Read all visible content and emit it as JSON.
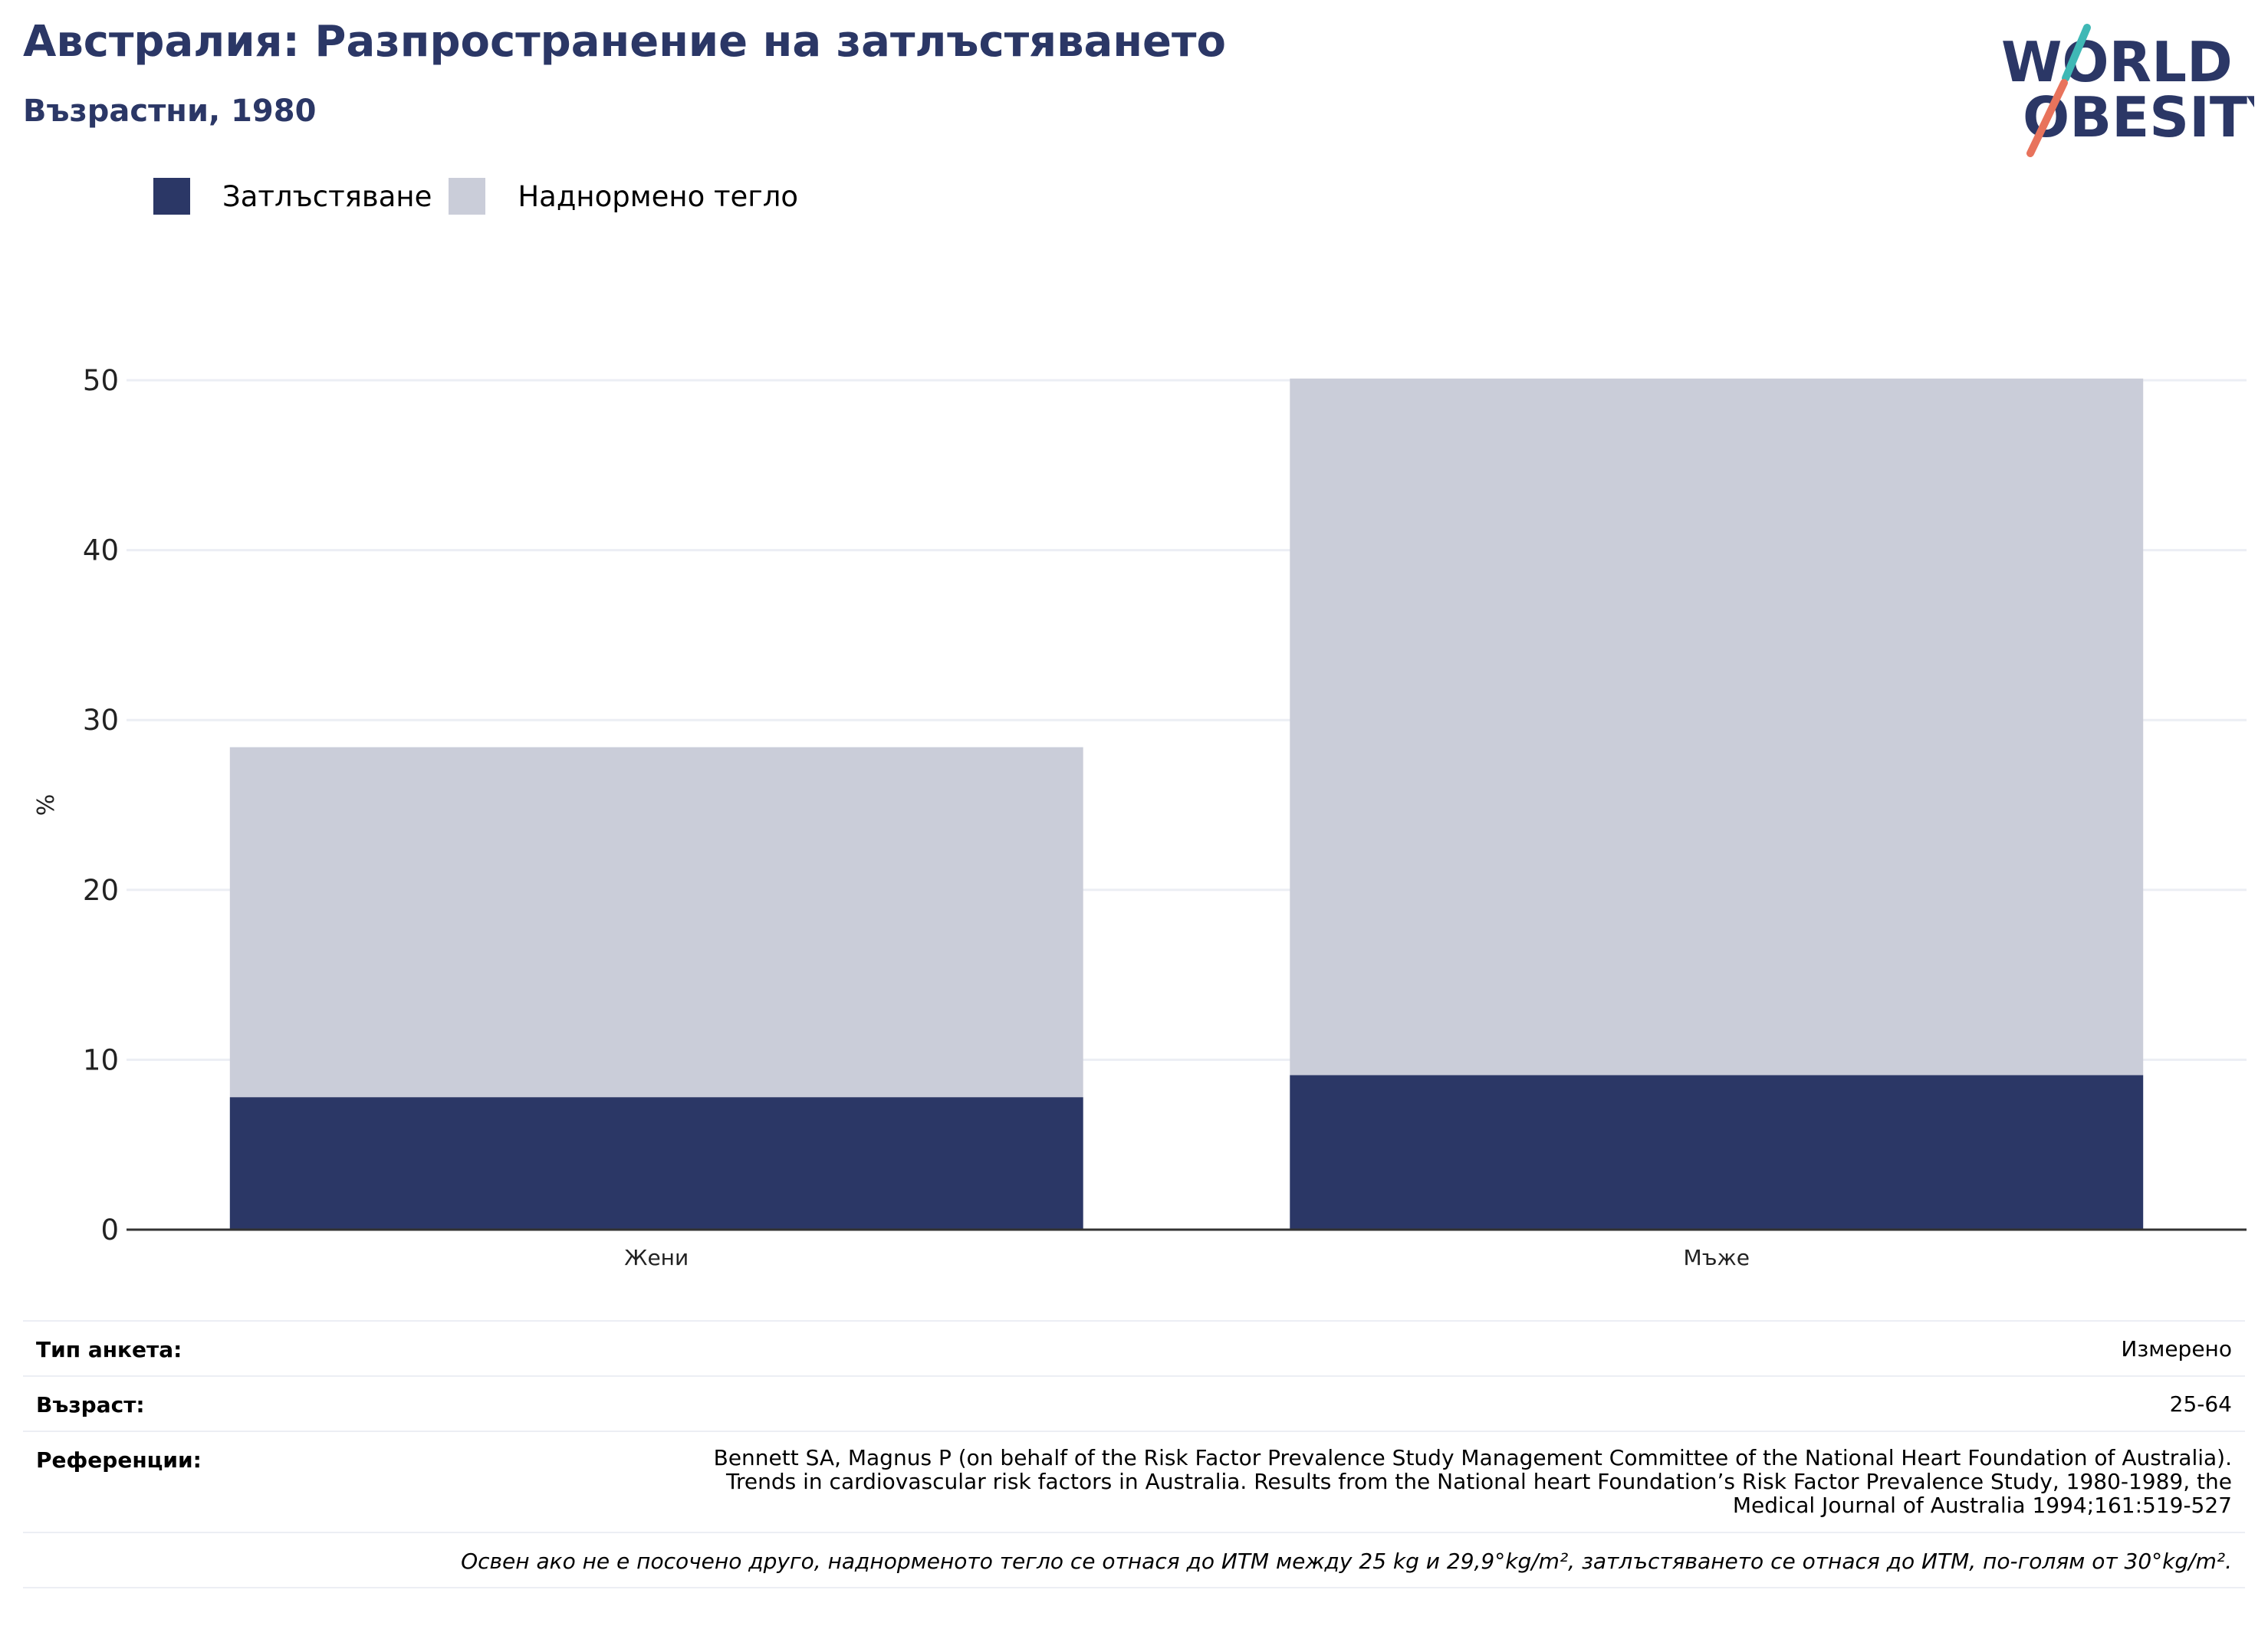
{
  "header": {
    "title": "Австралия: Разпространение на затлъстяването",
    "subtitle": "Възрастни, 1980"
  },
  "logo": {
    "line1": "WORLD",
    "line2": "OBESITY"
  },
  "colors": {
    "obesity": "#2b3766",
    "overweight": "#cacdd9",
    "brand": "#2b3766",
    "accent_teal": "#3fb8b5",
    "accent_coral": "#e8735c"
  },
  "chart_data": {
    "type": "bar",
    "stacked": true,
    "categories": [
      "Жени",
      "Мъже"
    ],
    "series": [
      {
        "name": "Затлъстяване",
        "values": [
          7.8,
          9.1
        ]
      },
      {
        "name": "Наднормено тегло",
        "values": [
          20.6,
          41.0
        ]
      }
    ],
    "ylabel": "%",
    "ylim": [
      0,
      50
    ],
    "yticks": [
      "0",
      "10",
      "20",
      "30",
      "40",
      "50"
    ],
    "grid": true,
    "legend_position": "top-left"
  },
  "info": {
    "survey_label": "Тип анкета:",
    "survey_value": "Измерено",
    "age_label": "Възраст:",
    "age_value": "25-64",
    "ref_label": "Референции:",
    "ref_lines": [
      "Bennett SA, Magnus P (on behalf of the Risk Factor Prevalence Study Management Committee of the National Heart Foundation of Australia).",
      "Trends in cardiovascular risk factors in Australia. Results from the National heart Foundation’s Risk Factor Prevalence Study, 1980-1989, the",
      "Medical Journal of Australia 1994;161:519-527"
    ],
    "note": "Освен ако не е посочено друго, наднорменото тегло се отнася до ИТМ между 25 kg и 29,9°kg/m², затлъстяването се отнася до ИТМ, по-голям от 30°kg/m²."
  }
}
